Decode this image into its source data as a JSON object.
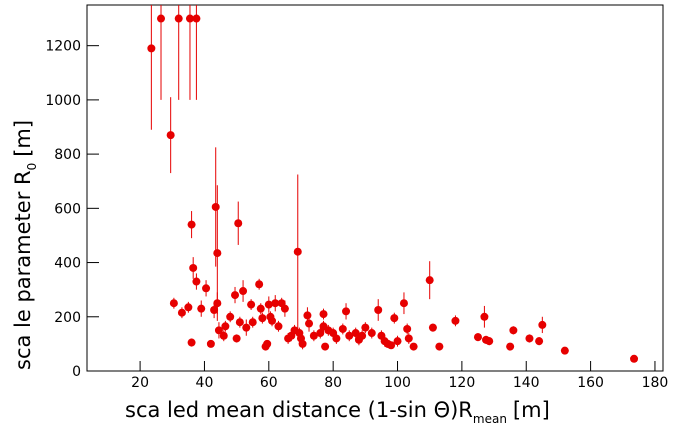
{
  "chart_data": {
    "type": "scatter",
    "xlabel": "sca led mean distance    (1-sin Θ)R",
    "xlabel_sub": "mean",
    "xlabel_unit": "[m]",
    "ylabel": "sca le parameter    R",
    "ylabel_sub": "0",
    "ylabel_unit": "[m]",
    "xlim": [
      3.5,
      182.5
    ],
    "ylim": [
      0,
      1350
    ],
    "xticks": [
      20,
      40,
      60,
      80,
      100,
      120,
      140,
      160,
      180
    ],
    "yticks": [
      0,
      200,
      400,
      600,
      800,
      1000,
      1200
    ],
    "color": "#e60000",
    "x": [
      23.5,
      26.5,
      29.5,
      32,
      35.5,
      37.5,
      36,
      43.5,
      44,
      50.5,
      69,
      110,
      36.5,
      30.5,
      33,
      35,
      36,
      37.5,
      39,
      40.5,
      43,
      44,
      44.5,
      46,
      46.5,
      42,
      48,
      49.5,
      50,
      51,
      52,
      53,
      54.5,
      55,
      57,
      57.5,
      58,
      59,
      59.5,
      60,
      60.5,
      61,
      62,
      63,
      64,
      65,
      66,
      67,
      68,
      69.5,
      70,
      70.5,
      72,
      72.5,
      74,
      76,
      77,
      77.5,
      77,
      78.5,
      80,
      81,
      83,
      84,
      85,
      87,
      88,
      89,
      90,
      92,
      94,
      95,
      96,
      97,
      98,
      99,
      100,
      102,
      103,
      103.5,
      105,
      111,
      113,
      118,
      125,
      127,
      127.5,
      128.5,
      135,
      136,
      141,
      144,
      145,
      152,
      173.5
    ],
    "values": [
      1190,
      1300,
      870,
      1300,
      1300,
      1300,
      540,
      605,
      435,
      545,
      440,
      335,
      380,
      250,
      215,
      235,
      105,
      330,
      230,
      305,
      225,
      250,
      150,
      130,
      165,
      100,
      200,
      280,
      120,
      180,
      295,
      160,
      245,
      180,
      320,
      230,
      195,
      90,
      100,
      245,
      200,
      185,
      250,
      165,
      250,
      230,
      120,
      130,
      150,
      140,
      120,
      100,
      205,
      175,
      130,
      140,
      210,
      90,
      165,
      150,
      140,
      120,
      155,
      220,
      130,
      140,
      115,
      130,
      160,
      140,
      225,
      130,
      110,
      100,
      95,
      195,
      110,
      250,
      155,
      120,
      90,
      160,
      90,
      185,
      125,
      200,
      115,
      110,
      90,
      150,
      120,
      110,
      170,
      75,
      45
    ],
    "errors": [
      300,
      300,
      140,
      300,
      300,
      300,
      50,
      220,
      250,
      80,
      285,
      70,
      40,
      20,
      20,
      20,
      15,
      30,
      30,
      30,
      30,
      40,
      30,
      20,
      20,
      10,
      20,
      30,
      15,
      20,
      40,
      30,
      20,
      20,
      20,
      20,
      20,
      10,
      10,
      30,
      20,
      20,
      30,
      20,
      20,
      30,
      20,
      20,
      20,
      20,
      20,
      20,
      30,
      30,
      20,
      20,
      20,
      10,
      20,
      20,
      20,
      20,
      20,
      30,
      20,
      20,
      20,
      20,
      20,
      20,
      40,
      20,
      20,
      15,
      10,
      20,
      20,
      40,
      20,
      20,
      10,
      15,
      10,
      20,
      15,
      40,
      15,
      15,
      10,
      15,
      15,
      15,
      30,
      10,
      10
    ]
  }
}
